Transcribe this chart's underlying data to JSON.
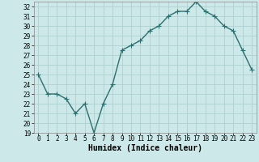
{
  "x": [
    0,
    1,
    2,
    3,
    4,
    5,
    6,
    7,
    8,
    9,
    10,
    11,
    12,
    13,
    14,
    15,
    16,
    17,
    18,
    19,
    20,
    21,
    22,
    23
  ],
  "y": [
    25,
    23,
    23,
    22.5,
    21,
    22,
    19,
    22,
    24,
    27.5,
    28,
    28.5,
    29.5,
    30,
    31,
    31.5,
    31.5,
    32.5,
    31.5,
    31,
    30,
    29.5,
    27.5,
    25.5
  ],
  "line_color": "#2d6e6e",
  "marker_color": "#2d6e6e",
  "bg_color": "#cce8e8",
  "grid_color": "#aacccc",
  "xlabel": "Humidex (Indice chaleur)",
  "xlim": [
    -0.5,
    23.5
  ],
  "ylim": [
    19,
    32.5
  ],
  "yticks": [
    19,
    20,
    21,
    22,
    23,
    24,
    25,
    26,
    27,
    28,
    29,
    30,
    31,
    32
  ],
  "xticks": [
    0,
    1,
    2,
    3,
    4,
    5,
    6,
    7,
    8,
    9,
    10,
    11,
    12,
    13,
    14,
    15,
    16,
    17,
    18,
    19,
    20,
    21,
    22,
    23
  ],
  "tick_fontsize": 5.5,
  "label_fontsize": 7,
  "linewidth": 1.0,
  "markersize": 2.0
}
